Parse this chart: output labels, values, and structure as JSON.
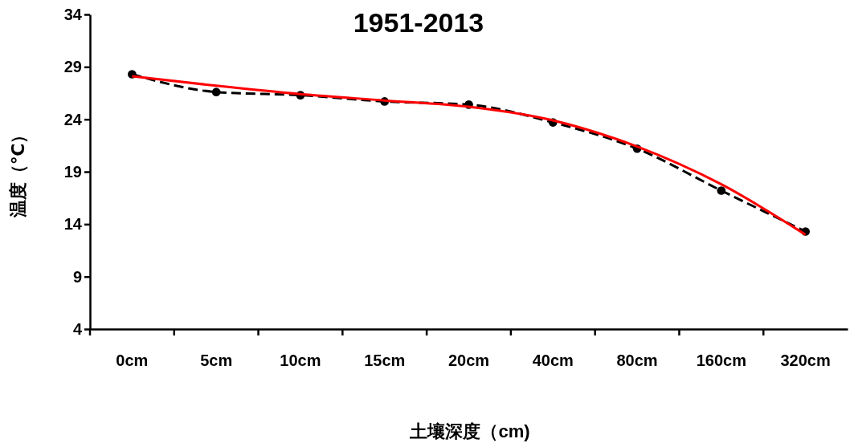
{
  "chart_data": {
    "type": "line",
    "title": "1951-2013",
    "xlabel": "土壤深度（cm)",
    "ylabel": "温度（℃）",
    "categories": [
      "0cm",
      "5cm",
      "10cm",
      "15cm",
      "20cm",
      "40cm",
      "80cm",
      "160cm",
      "320cm"
    ],
    "series": [
      {
        "color": "#000000",
        "line_style": "dashed",
        "marker": "circle",
        "values": [
          28.3,
          26.6,
          26.3,
          25.7,
          25.4,
          23.7,
          21.2,
          17.2,
          13.3
        ]
      },
      {
        "color": "#ff0000",
        "line_style": "solid",
        "marker": "none",
        "values": [
          28.1,
          27.2,
          26.4,
          25.8,
          25.2,
          23.9,
          21.4,
          17.8,
          13.0
        ]
      }
    ],
    "ylim": [
      4,
      34
    ],
    "yticks": [
      4,
      9,
      14,
      19,
      24,
      29,
      34
    ],
    "grid": false
  }
}
